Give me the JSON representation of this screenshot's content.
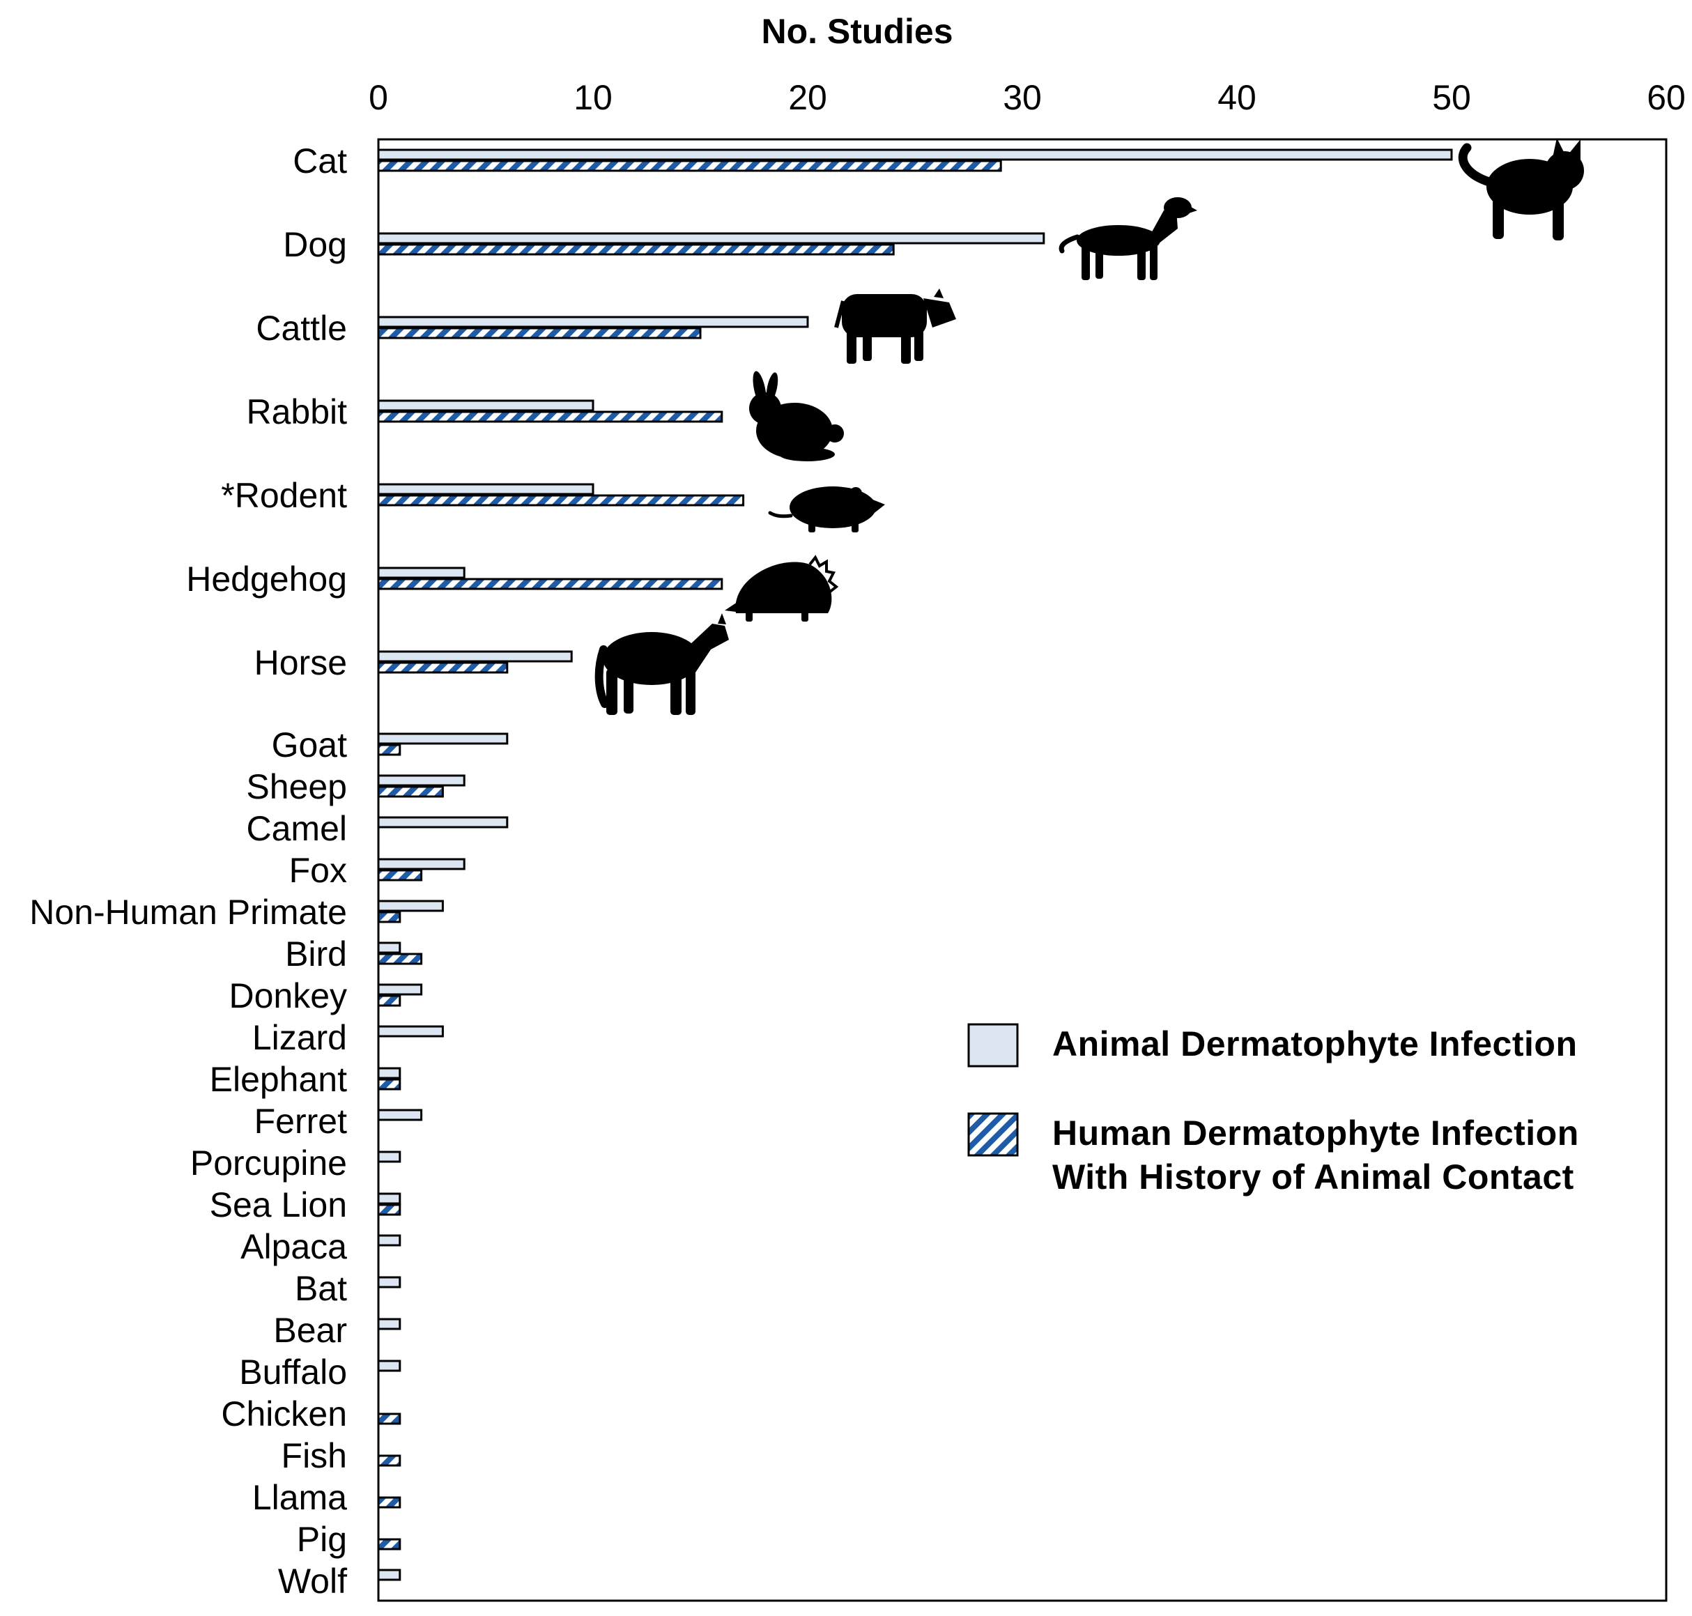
{
  "chart_data": {
    "type": "bar",
    "orientation": "horizontal",
    "title": "No. Studies",
    "xlim": [
      0,
      60
    ],
    "xticks": [
      "0",
      "10",
      "20",
      "30",
      "40",
      "50",
      "60"
    ],
    "categories": [
      "Cat",
      "Dog",
      "Cattle",
      "Rabbit",
      "*Rodent",
      "Hedgehog",
      "Horse",
      "Goat",
      "Sheep",
      "Camel",
      "Fox",
      "Non-Human Primate",
      "Bird",
      "Donkey",
      "Lizard",
      "Elephant",
      "Ferret",
      "Porcupine",
      "Sea Lion",
      "Alpaca",
      "Bat",
      "Bear",
      "Buffalo",
      "Chicken",
      "Fish",
      "Llama",
      "Pig",
      "Wolf"
    ],
    "series": [
      {
        "name": "Animal Dermatophyte Infection",
        "fill": "solid",
        "color": "#dce6f2",
        "values": [
          50,
          31,
          20,
          10,
          10,
          4,
          9,
          6,
          4,
          6,
          4,
          3,
          1,
          2,
          3,
          1,
          2,
          1,
          1,
          1,
          1,
          1,
          1,
          0,
          0,
          0,
          0,
          1
        ]
      },
      {
        "name": "Human Dermatophyte Infection With History of Animal Contact",
        "fill": "hatched",
        "color": "#1f5ca8",
        "values": [
          29,
          24,
          15,
          16,
          17,
          16,
          6,
          1,
          3,
          0,
          2,
          1,
          2,
          1,
          0,
          1,
          0,
          0,
          1,
          0,
          0,
          0,
          0,
          1,
          1,
          1,
          1,
          0
        ]
      }
    ],
    "legend": {
      "position": "right-middle",
      "items": [
        {
          "lines": [
            "Animal Dermatophyte Infection"
          ]
        },
        {
          "lines": [
            "Human Dermatophyte Infection",
            "With History of Animal Contact"
          ]
        }
      ]
    },
    "icons": [
      "cat-silhouette",
      "dog-silhouette",
      "cattle-silhouette",
      "rabbit-silhouette",
      "rodent-silhouette",
      "hedgehog-silhouette",
      "horse-silhouette"
    ]
  }
}
